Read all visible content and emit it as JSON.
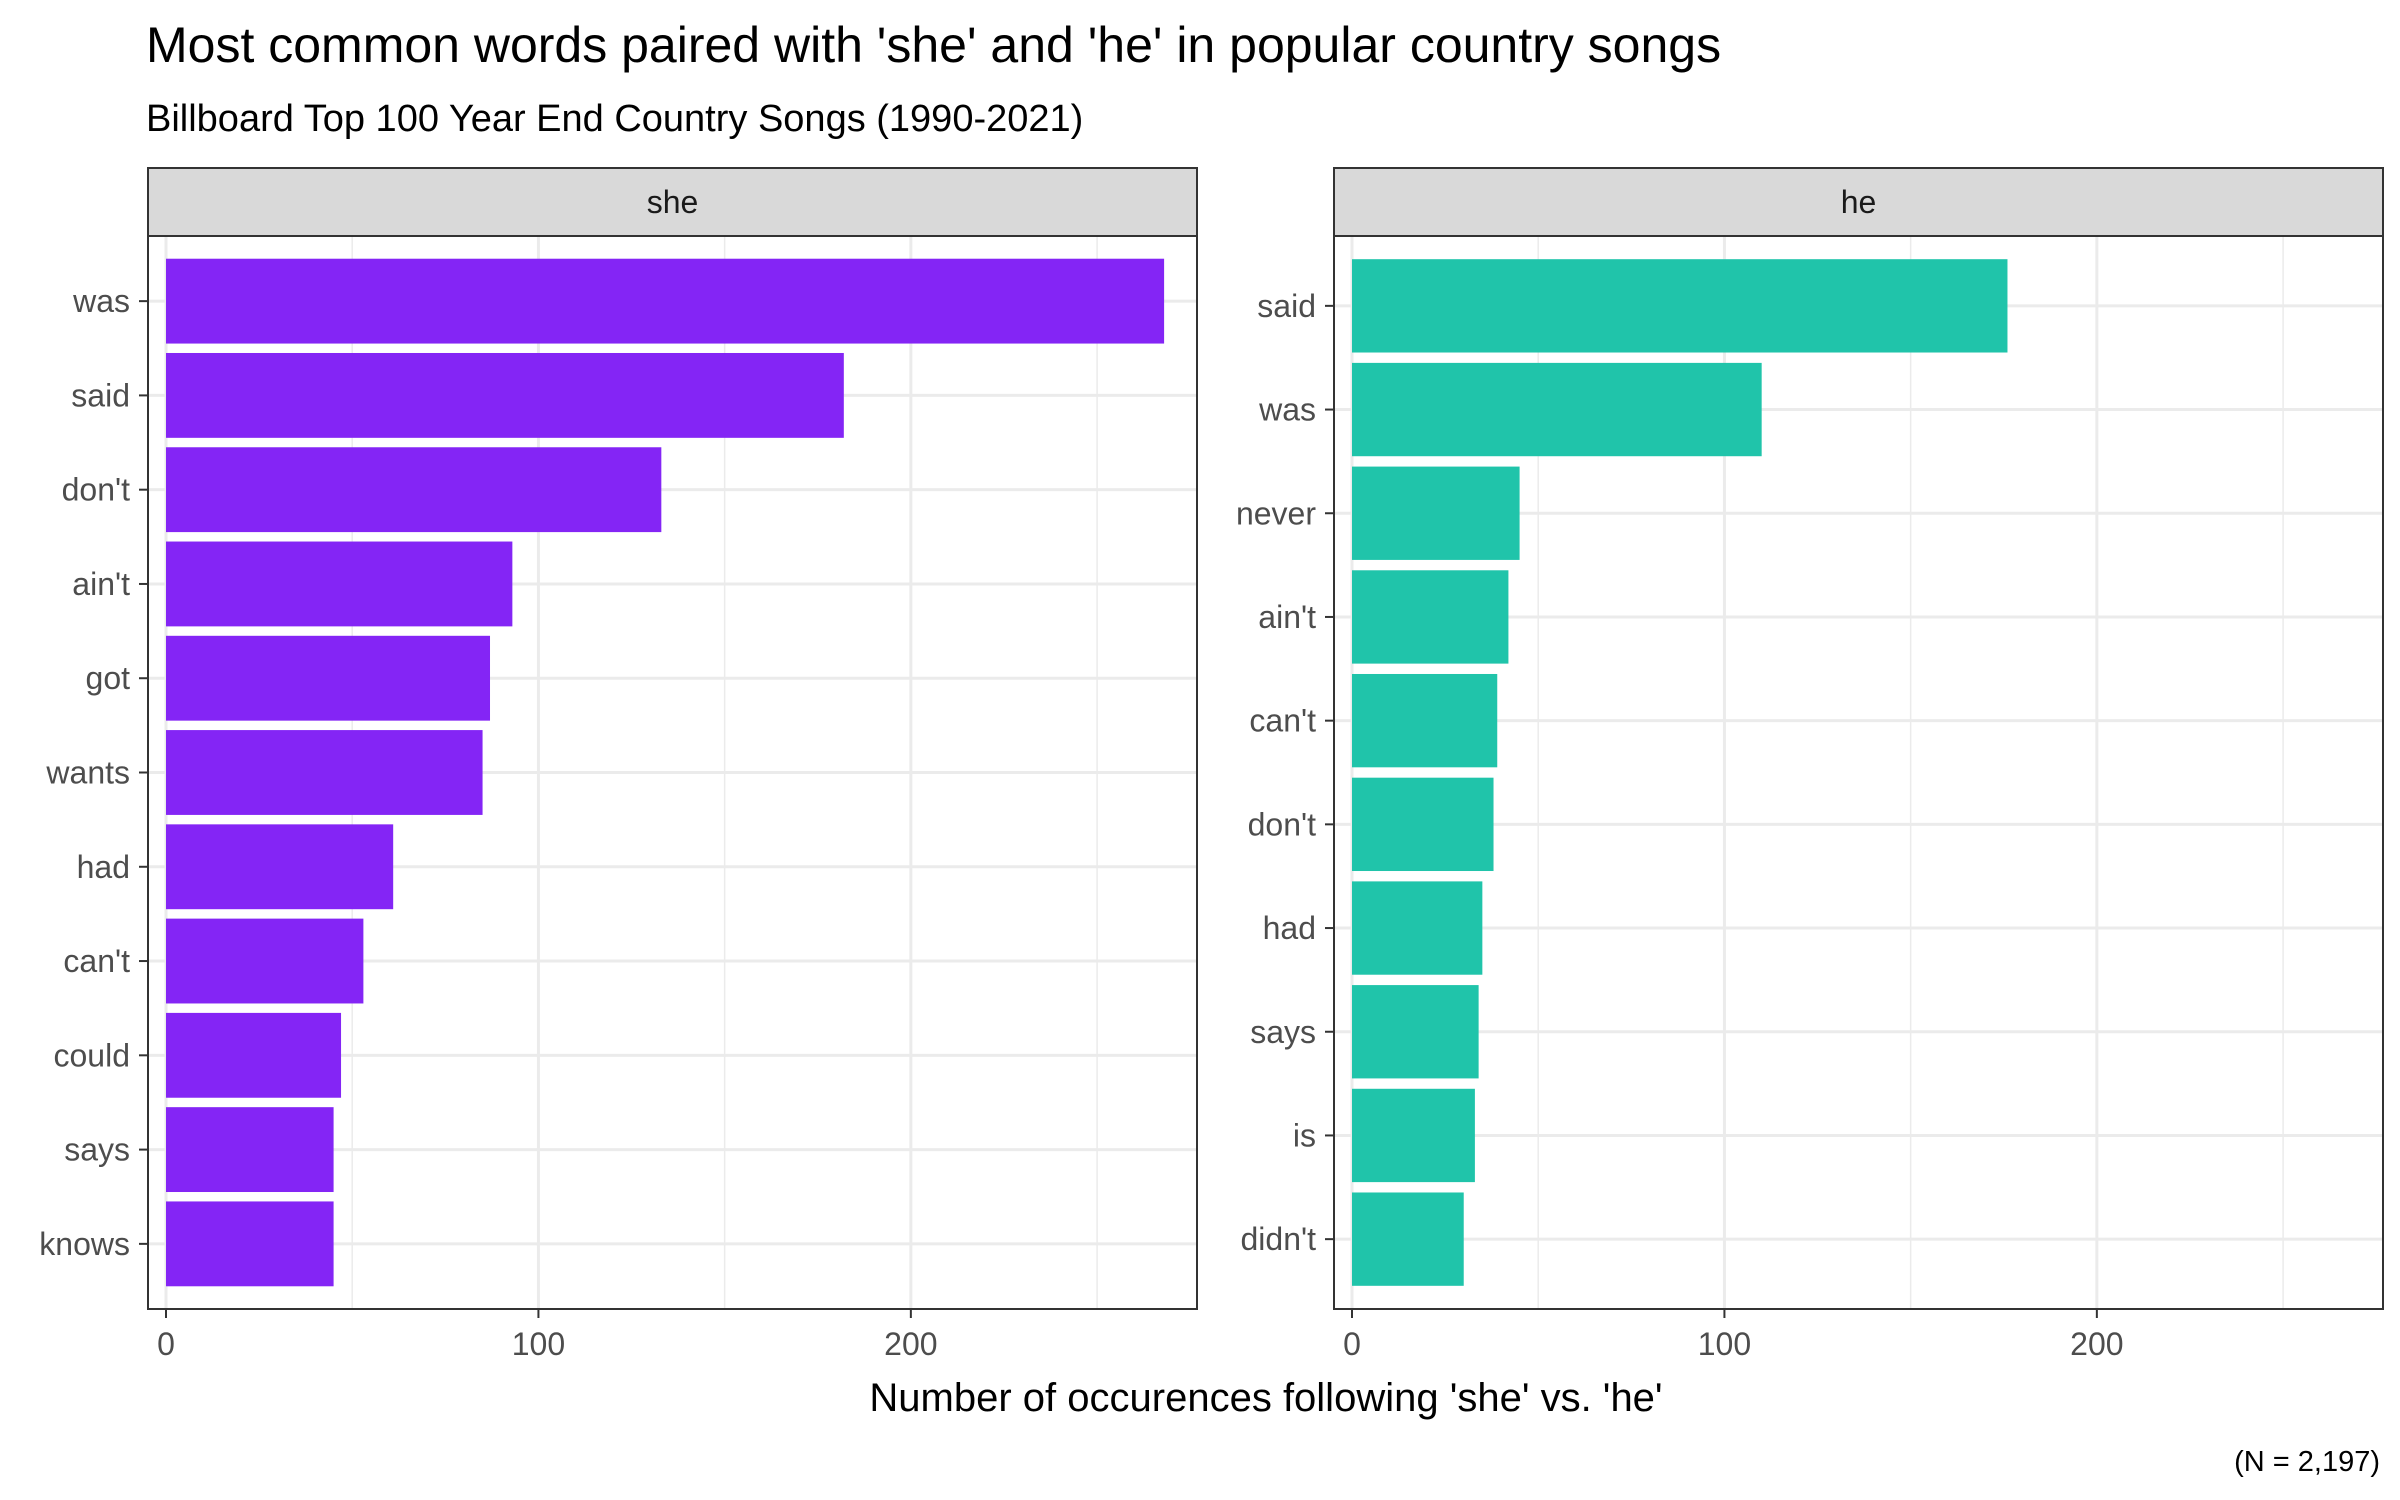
{
  "chart_data": {
    "type": "bar",
    "orientation": "horizontal",
    "title": "Most common words paired with 'she' and 'he' in popular country songs",
    "subtitle": "Billboard Top 100 Year End Country Songs (1990-2021)",
    "xlabel": "Number of occurences following 'she' vs. 'he'",
    "caption": "(N = 2,197)",
    "xlim": [
      0,
      272
    ],
    "xticks": [
      0,
      100,
      200
    ],
    "grid": true,
    "panels": [
      {
        "label": "she",
        "color": "#8425f5",
        "categories": [
          "was",
          "said",
          "don't",
          "ain't",
          "got",
          "wants",
          "had",
          "can't",
          "could",
          "says",
          "knows"
        ],
        "values": [
          268,
          182,
          133,
          93,
          87,
          85,
          61,
          53,
          47,
          45,
          45
        ]
      },
      {
        "label": "he",
        "color": "#20c4aa",
        "categories": [
          "said",
          "was",
          "never",
          "ain't",
          "can't",
          "don't",
          "had",
          "says",
          "is",
          "didn't"
        ],
        "values": [
          176,
          110,
          45,
          42,
          39,
          38,
          35,
          34,
          33,
          30
        ]
      }
    ]
  }
}
